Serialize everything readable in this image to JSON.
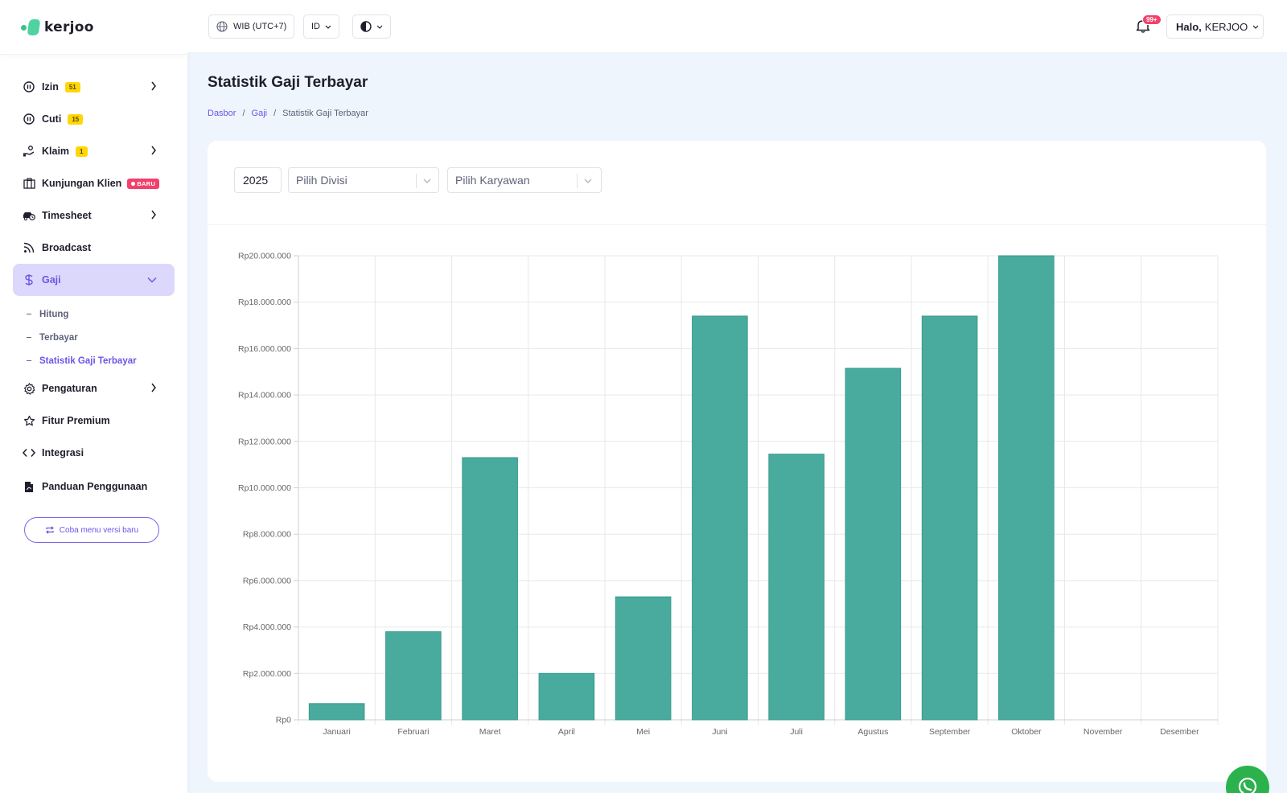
{
  "brand": {
    "name": "kerjoo"
  },
  "sidebar": {
    "items": [
      {
        "label": "Izin",
        "badge": "51",
        "icon": "pause-circle-icon",
        "has_arrow": true
      },
      {
        "label": "Cuti",
        "badge": "15",
        "icon": "pause-circle-icon",
        "has_arrow": false
      },
      {
        "label": "Klaim",
        "badge": "1",
        "icon": "hand-money-icon",
        "has_arrow": true
      },
      {
        "label": "Kunjungan Klien",
        "badge_new": "BARU",
        "icon": "building-icon",
        "has_arrow": false
      },
      {
        "label": "Timesheet",
        "icon": "car-clock-icon",
        "has_arrow": true
      },
      {
        "label": "Broadcast",
        "icon": "rss-icon",
        "has_arrow": false
      },
      {
        "label": "Gaji",
        "icon": "dollar-icon",
        "active": true
      },
      {
        "label": "Pengaturan",
        "icon": "gear-icon",
        "has_arrow": true
      },
      {
        "label": "Fitur Premium",
        "icon": "star-icon",
        "has_arrow": false
      },
      {
        "label": "Integrasi",
        "icon": "code-icon",
        "has_arrow": false
      },
      {
        "label": "Panduan Penggunaan",
        "icon": "file-pdf-icon",
        "has_arrow": false
      }
    ],
    "gaji_sub": [
      "Hitung",
      "Terbayar",
      "Statistik Gaji Terbayar"
    ],
    "try_new_label": "Coba menu versi baru"
  },
  "topbar": {
    "timezone": "WIB (UTC+7)",
    "language": "ID",
    "notifications_badge": "99+",
    "greeting": "Halo,",
    "user_name": "KERJOO"
  },
  "page": {
    "title": "Statistik Gaji Terbayar",
    "breadcrumb": [
      "Dasbor",
      "Gaji",
      "Statistik Gaji Terbayar"
    ]
  },
  "filters": {
    "year": "2025",
    "division_placeholder": "Pilih Divisi",
    "employee_placeholder": "Pilih Karyawan"
  },
  "colors": {
    "bar": "#48ab9d",
    "accent": "#6a55e6",
    "active_bg": "#dcd8fb"
  },
  "chart_data": {
    "type": "bar",
    "categories": [
      "Januari",
      "Februari",
      "Maret",
      "April",
      "Mei",
      "Juni",
      "Juli",
      "Agustus",
      "September",
      "Oktober",
      "November",
      "Desember"
    ],
    "values": [
      700000,
      3800000,
      11300000,
      2000000,
      5300000,
      17400000,
      11450000,
      15150000,
      17400000,
      20000000,
      0,
      0
    ],
    "ylim": [
      0,
      20000000
    ],
    "yticks": [
      "Rp0",
      "Rp2.000.000",
      "Rp4.000.000",
      "Rp6.000.000",
      "Rp8.000.000",
      "Rp10.000.000",
      "Rp12.000.000",
      "Rp14.000.000",
      "Rp16.000.000",
      "Rp18.000.000",
      "Rp20.000.000"
    ],
    "grid": true,
    "legend": "none"
  }
}
